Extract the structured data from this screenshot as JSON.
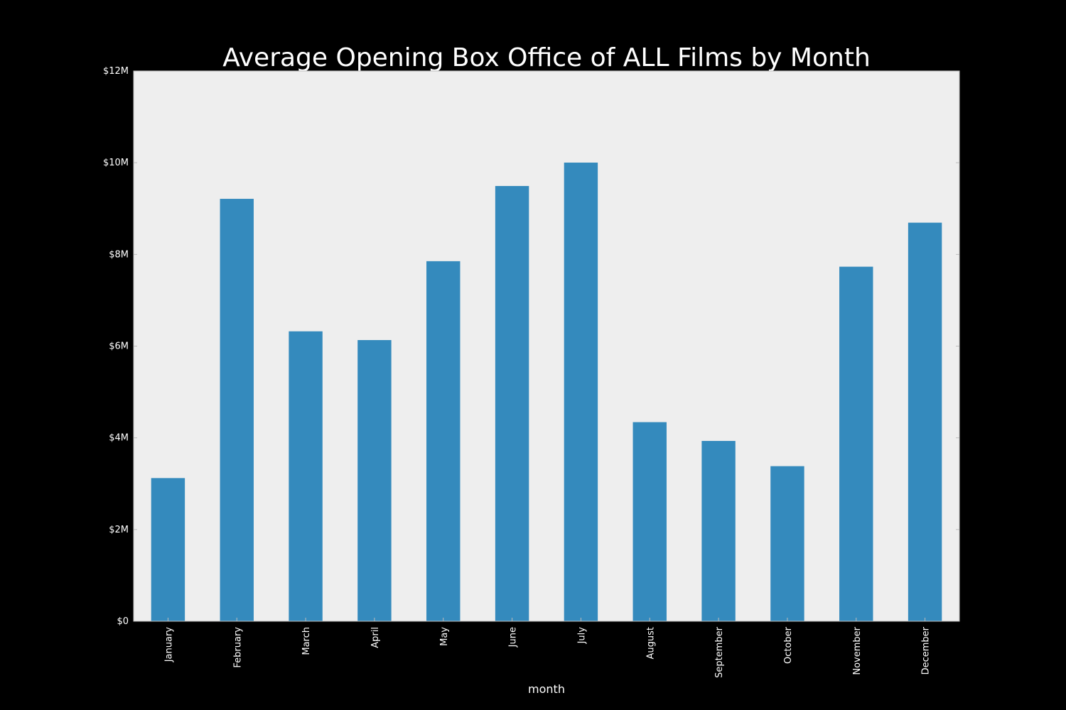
{
  "chart_data": {
    "type": "bar",
    "title": "Average Opening Box Office of ALL Films by Month",
    "xlabel": "month",
    "ylabel": "",
    "categories": [
      "January",
      "February",
      "March",
      "April",
      "May",
      "June",
      "July",
      "August",
      "September",
      "October",
      "November",
      "December"
    ],
    "values": [
      3130000,
      9220000,
      6330000,
      6140000,
      7860000,
      9500000,
      10010000,
      4350000,
      3940000,
      3390000,
      7740000,
      8700000
    ],
    "ylim": [
      0,
      12000000
    ],
    "yticks": [
      0,
      2000000,
      4000000,
      6000000,
      8000000,
      10000000,
      12000000
    ],
    "ytick_labels": [
      "$0",
      "$2M",
      "$4M",
      "$6M",
      "$8M",
      "$10M",
      "$12M"
    ],
    "grid": false,
    "legend": "none",
    "colors": {
      "bar": "#348abd",
      "plot_background": "#eeeeee",
      "figure_background": "#000000",
      "text": "#ffffff"
    }
  }
}
